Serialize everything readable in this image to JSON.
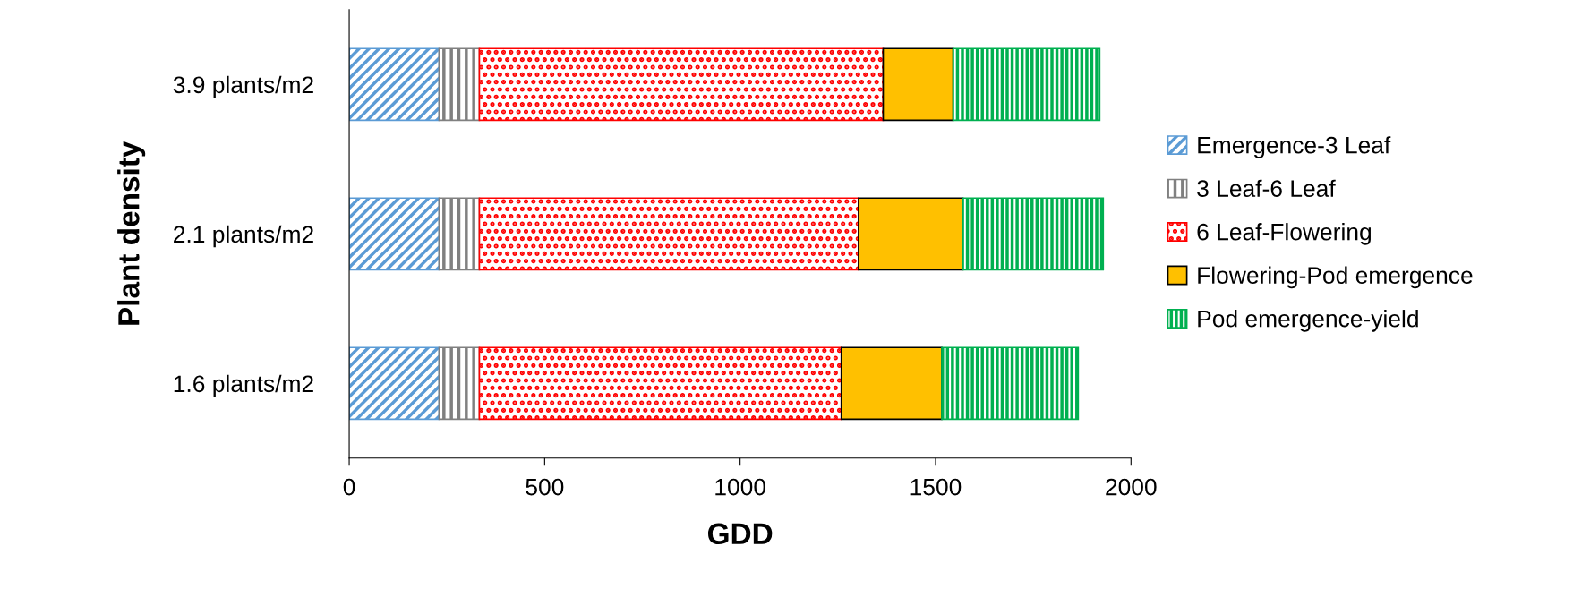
{
  "chart_data": {
    "type": "bar",
    "orientation": "horizontal",
    "stacked": true,
    "xlabel": "GDD",
    "ylabel": "Plant density",
    "categories": [
      "3.9 plants/m2",
      "2.1 plants/m2",
      "1.6 plants/m2"
    ],
    "series": [
      {
        "name": "Emergence-3 Leaf",
        "color": "#5b9bd5",
        "values": [
          230,
          230,
          230
        ]
      },
      {
        "name": "3 Leaf-6 Leaf",
        "color": "#808080",
        "values": [
          103,
          103,
          103
        ]
      },
      {
        "name": "6 Leaf-Flowering",
        "color": "#ff0000",
        "values": [
          1033,
          970,
          926
        ]
      },
      {
        "name": "Flowering-Pod emergence",
        "color": "#ffc000",
        "values": [
          179,
          267,
          257
        ]
      },
      {
        "name": "Pod emergence-yield",
        "color": "#00b050",
        "values": [
          375,
          359,
          349
        ]
      }
    ],
    "xlim": [
      0,
      2000
    ],
    "xticks": [
      0,
      500,
      1000,
      1500,
      2000
    ],
    "grid": false,
    "legend": "right"
  }
}
